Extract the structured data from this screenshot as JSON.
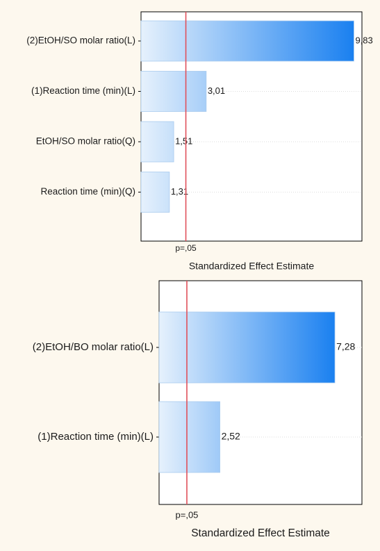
{
  "chart_data": [
    {
      "type": "bar",
      "orientation": "horizontal",
      "categories": [
        "(2)EtOH/SO molar ratio(L)",
        "(1)Reaction time (min)(L)",
        "EtOH/SO molar ratio(Q)",
        "Reaction time (min)(Q)"
      ],
      "values": [
        9.83,
        3.01,
        1.51,
        1.31
      ],
      "value_labels": [
        "9,83",
        "3,01",
        "1,51",
        "1,31"
      ],
      "reference_line": {
        "value": 2.07,
        "label": "p=,05",
        "color": "#e0505a"
      },
      "xlabel": "Standardized Effect Estimate",
      "xlim": [
        0,
        10.2
      ],
      "grid": true,
      "bar_gradient": [
        "#e6f1fc",
        "#1a80f0"
      ]
    },
    {
      "type": "bar",
      "orientation": "horizontal",
      "categories": [
        "(2)EtOH/BO molar ratio(L)",
        "(1)Reaction time (min)(L)"
      ],
      "values": [
        7.28,
        2.52
      ],
      "value_labels": [
        "7,28",
        "2,52"
      ],
      "reference_line": {
        "value": 1.15,
        "label": "p=,05",
        "color": "#e0505a"
      },
      "xlabel": "Standardized Effect Estimate",
      "xlim": [
        0,
        8.4
      ],
      "grid": true,
      "bar_gradient": [
        "#e6f1fc",
        "#1a80f0"
      ]
    }
  ]
}
